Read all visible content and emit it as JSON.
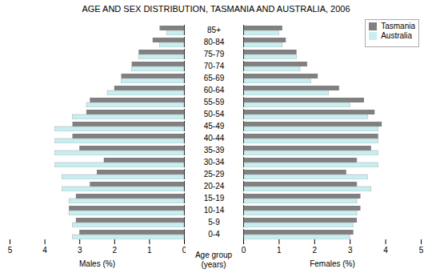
{
  "chart_data": [
    {
      "type": "bar",
      "orientation": "horizontal",
      "title": "AGE AND SEX DISTRIBUTION, TASMANIA AND AUSTRALIA, 2006",
      "xlabel": "Males (%)",
      "ylabel": "Age group\n(years)",
      "categories": [
        "0-4",
        "5-9",
        "10-14",
        "15-19",
        "20-24",
        "25-29",
        "30-34",
        "35-39",
        "40-44",
        "45-49",
        "50-54",
        "55-59",
        "60-64",
        "65-69",
        "70-74",
        "75-79",
        "80-84",
        "85+"
      ],
      "series": [
        {
          "name": "Tasmania",
          "color": "#808080",
          "values": [
            3.0,
            3.1,
            3.3,
            3.1,
            2.7,
            2.5,
            2.3,
            3.0,
            3.2,
            3.2,
            2.8,
            2.7,
            2.0,
            1.8,
            1.5,
            1.3,
            0.9,
            0.7
          ]
        },
        {
          "name": "Australia",
          "color": "#c8eef0",
          "values": [
            3.2,
            3.2,
            3.3,
            3.3,
            3.5,
            3.5,
            3.7,
            3.7,
            3.7,
            3.7,
            3.2,
            2.8,
            2.2,
            1.8,
            1.5,
            1.3,
            0.7,
            0.5
          ]
        }
      ],
      "xlim": [
        5,
        0
      ],
      "xticks": [
        5,
        4,
        3,
        2,
        1,
        0
      ]
    },
    {
      "type": "bar",
      "orientation": "horizontal",
      "xlabel": "Females (%)",
      "categories": [
        "0-4",
        "5-9",
        "10-14",
        "15-19",
        "20-24",
        "25-29",
        "30-34",
        "35-39",
        "40-44",
        "45-49",
        "50-54",
        "55-59",
        "60-64",
        "65-69",
        "70-74",
        "75-79",
        "80-84",
        "85+"
      ],
      "series": [
        {
          "name": "Tasmania",
          "color": "#808080",
          "values": [
            3.1,
            3.2,
            3.3,
            3.3,
            3.2,
            2.9,
            3.2,
            3.6,
            3.8,
            3.9,
            3.7,
            3.4,
            2.7,
            2.1,
            1.8,
            1.5,
            1.2,
            1.1
          ]
        },
        {
          "name": "Australia",
          "color": "#c8eef0",
          "values": [
            3.0,
            3.1,
            3.2,
            3.2,
            3.6,
            3.5,
            3.8,
            3.8,
            3.8,
            3.8,
            3.5,
            3.0,
            2.4,
            1.9,
            1.6,
            1.5,
            1.1,
            1.0
          ]
        }
      ],
      "xlim": [
        0,
        5
      ],
      "xticks": [
        0,
        1,
        2,
        3,
        4,
        5
      ],
      "legend": "upper right"
    }
  ]
}
